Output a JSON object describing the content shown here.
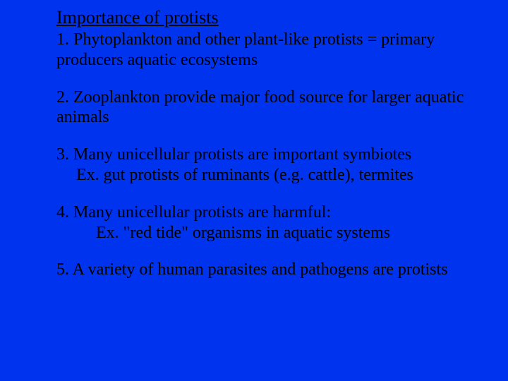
{
  "background_color": "#0033ee",
  "text_color": "#000000",
  "font_family": "Times New Roman",
  "title_fontsize": 26,
  "body_fontsize": 24,
  "title": "Importance of protists",
  "items": [
    {
      "main": "1. Phytoplankton and other plant-like protists = primary producers aquatic ecosystems"
    },
    {
      "main": "2. Zooplankton provide major food source for larger aquatic animals"
    },
    {
      "main": "3. Many unicellular protists are important symbiotes",
      "sub": "Ex. gut protists of ruminants (e.g. cattle), termites",
      "sub_indent": 1
    },
    {
      "main": "4. Many unicellular protists are harmful:",
      "sub": "Ex. \"red tide\" organisms in aquatic systems",
      "sub_indent": 2
    },
    {
      "main": "5. A variety of human parasites and pathogens are protists"
    }
  ]
}
